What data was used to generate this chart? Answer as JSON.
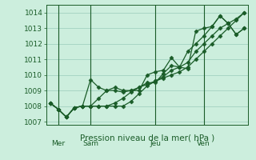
{
  "background_color": "#cceedd",
  "plot_bg_color": "#cceedd",
  "grid_color": "#99ccbb",
  "line_color": "#1a5c28",
  "xlabel": "Pression niveau de la mer( hPa )",
  "xlabel_fontsize": 7.5,
  "ylim": [
    1006.8,
    1014.5
  ],
  "yticks": [
    1007,
    1008,
    1009,
    1010,
    1011,
    1012,
    1013,
    1014
  ],
  "day_labels": [
    "Mer",
    "Sam",
    "Jeu",
    "Ven"
  ],
  "day_positions": [
    1,
    5,
    13,
    19
  ],
  "series": [
    [
      1008.2,
      1007.8,
      1007.3,
      1007.9,
      1008.0,
      1009.7,
      1009.2,
      1009.0,
      1009.0,
      1008.9,
      1009.0,
      1009.0,
      1010.0,
      1010.2,
      1010.3,
      1011.1,
      1010.5,
      1010.4,
      1012.8,
      1013.0,
      1013.1,
      1013.8,
      1013.3,
      1012.6,
      1013.0
    ],
    [
      1008.2,
      1007.8,
      1007.3,
      1007.9,
      1008.0,
      1008.0,
      1008.0,
      1008.0,
      1008.0,
      1008.0,
      1008.3,
      1008.8,
      1009.3,
      1009.6,
      1009.9,
      1010.3,
      1010.5,
      1010.8,
      1011.5,
      1012.0,
      1012.5,
      1013.0,
      1013.3,
      1013.6,
      1014.0
    ],
    [
      1008.2,
      1007.8,
      1007.3,
      1007.9,
      1008.0,
      1008.0,
      1008.5,
      1009.0,
      1009.2,
      1009.0,
      1009.0,
      1009.2,
      1009.5,
      1009.5,
      1010.1,
      1010.6,
      1010.5,
      1011.5,
      1012.0,
      1012.5,
      1013.1,
      1013.8,
      1013.3,
      1012.6,
      1013.0
    ],
    [
      1008.2,
      1007.8,
      1007.3,
      1007.9,
      1008.0,
      1008.0,
      1008.0,
      1008.0,
      1008.2,
      1008.5,
      1008.9,
      1009.2,
      1009.4,
      1009.6,
      1009.8,
      1010.0,
      1010.2,
      1010.5,
      1011.0,
      1011.5,
      1012.0,
      1012.5,
      1013.0,
      1013.5,
      1014.0
    ]
  ],
  "n_points": 25,
  "tick_labelsize": 6.5,
  "vline_color": "#1a5c28",
  "axis_color": "#1a5c28",
  "marker": "D",
  "markersize": 2.5,
  "linewidth": 0.9
}
